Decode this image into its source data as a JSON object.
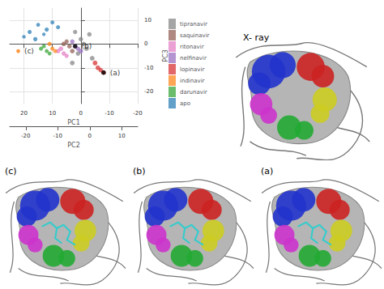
{
  "chart_data": {
    "type": "scatter",
    "x_label": "PC1",
    "x2_label": "PC2",
    "y_label": "PC3",
    "xlim": [
      -20,
      25
    ],
    "xticks": [
      -20,
      -10,
      0,
      10,
      20
    ],
    "x2lim": [
      -25,
      15
    ],
    "x2ticks": [
      -20,
      -10,
      0,
      10
    ],
    "ylim": [
      -25,
      15
    ],
    "yticks": [
      -20,
      -10,
      0,
      10
    ],
    "grid": true,
    "legend": "right",
    "series": [
      {
        "name": "tipranavir",
        "color": "#7f7f7f",
        "values": [
          [
            0,
            0,
            2
          ],
          [
            -2,
            2,
            -2
          ],
          [
            2,
            -2,
            5
          ],
          [
            -4,
            4,
            -6
          ],
          [
            1,
            1,
            -4
          ],
          [
            -1,
            -3,
            0
          ],
          [
            3,
            3,
            -8
          ],
          [
            -3,
            0,
            4
          ]
        ]
      },
      {
        "name": "saquinavir",
        "color": "#8c564b",
        "values": [
          [
            4,
            0,
            -1
          ],
          [
            5,
            -2,
            1
          ],
          [
            3,
            2,
            -3
          ],
          [
            6,
            1,
            0
          ]
        ]
      },
      {
        "name": "ritonavir",
        "color": "#e377c2",
        "values": [
          [
            6,
            -1,
            -4
          ],
          [
            7,
            1,
            -2
          ],
          [
            5,
            -3,
            -5
          ],
          [
            8,
            0,
            -3
          ]
        ]
      },
      {
        "name": "nelfinavir",
        "color": "#9467bd",
        "values": [
          [
            2,
            1,
            -1
          ],
          [
            1,
            -1,
            -2
          ],
          [
            3,
            0,
            1
          ],
          [
            0,
            2,
            -3
          ]
        ]
      },
      {
        "name": "lopinavir",
        "color": "#d62728",
        "values": [
          [
            -6,
            3,
            -10
          ],
          [
            -8,
            2,
            -12
          ],
          [
            -5,
            4,
            -8
          ],
          [
            -7,
            1,
            -11
          ]
        ]
      },
      {
        "name": "indinavir",
        "color": "#ff7f0e",
        "values": [
          [
            10,
            -4,
            -2
          ],
          [
            11,
            -3,
            0
          ],
          [
            9,
            -5,
            -3
          ]
        ]
      },
      {
        "name": "darunavir",
        "color": "#2ca02c",
        "values": [
          [
            12,
            -6,
            -3
          ],
          [
            13,
            -5,
            -1
          ],
          [
            11,
            -7,
            -4
          ],
          [
            14,
            -4,
            -2
          ]
        ]
      },
      {
        "name": "apo",
        "color": "#1f77b4",
        "values": [
          [
            18,
            -5,
            5
          ],
          [
            15,
            -8,
            8
          ],
          [
            12,
            -3,
            6
          ],
          [
            20,
            -10,
            3
          ],
          [
            10,
            -6,
            9
          ],
          [
            16,
            -2,
            2
          ],
          [
            13,
            -12,
            4
          ],
          [
            8,
            -4,
            7
          ]
        ]
      }
    ],
    "annotations": [
      {
        "text": "(a)",
        "point": [
          -8,
          2,
          -12
        ]
      },
      {
        "text": "(b)",
        "point": [
          2,
          0,
          -1
        ]
      },
      {
        "text": "(c)",
        "point": [
          22,
          -8,
          -3
        ],
        "color": "#ff7f0e"
      }
    ]
  },
  "panels": [
    {
      "label": "X- ray",
      "ligand": false
    },
    {
      "label": "(c)",
      "ligand": true
    },
    {
      "label": "(b)",
      "ligand": true
    },
    {
      "label": "(a)",
      "ligand": true
    }
  ]
}
